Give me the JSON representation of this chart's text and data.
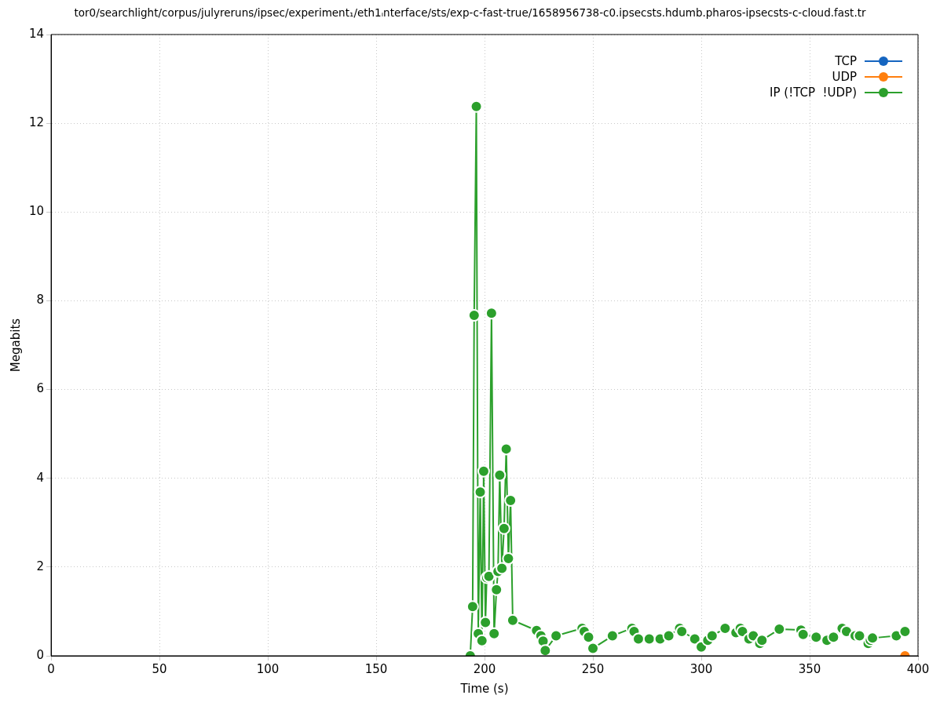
{
  "chart_data": {
    "type": "line",
    "title": "tor0/searchlight/corpus/julyreruns/ipsec/experiment₁/eth1ᵢnterface/sts/exp-c-fast-true/1658956738-c0.ipsecsts.hdumb.pharos-ipsecsts-c-cloud.fast.tr",
    "xlabel": "Time (s)",
    "ylabel": "Megabits",
    "xlim": [
      0,
      400
    ],
    "xticks": [
      0,
      50,
      100,
      150,
      200,
      250,
      300,
      350,
      400
    ],
    "ylim": [
      0,
      14
    ],
    "yticks": [
      0,
      2,
      4,
      6,
      8,
      10,
      12,
      14
    ],
    "grid": true,
    "legend": "top right",
    "marker": "circle",
    "line_style": "solid",
    "series": [
      {
        "name": "TCP",
        "color": "#1565c0"
      },
      {
        "name": "UDP",
        "color": "#ff7f0e",
        "x": [
          394
        ],
        "values": [
          0
        ]
      },
      {
        "name": "IP (!TCP  !UDP)",
        "color": "#2ca02c",
        "x": [
          193.4,
          194.5,
          195.2,
          196.2,
          197.1,
          198,
          198.8,
          199.6,
          200.4,
          201,
          202,
          203.2,
          204.4,
          205.5,
          206.2,
          207,
          208,
          209,
          210,
          211,
          212,
          213,
          224,
          226,
          227,
          228,
          233,
          245,
          246,
          248,
          250,
          259,
          268,
          269,
          271,
          276,
          281,
          285,
          290,
          291,
          297,
          300,
          303,
          305,
          311,
          316,
          318,
          319,
          322,
          324,
          327,
          328,
          336,
          346,
          347,
          353,
          358,
          361,
          365,
          367,
          371,
          373,
          377,
          378,
          379,
          390,
          394
        ],
        "values": [
          0,
          1.11,
          7.67,
          12.38,
          0.5,
          3.69,
          0.34,
          4.16,
          0.75,
          1.76,
          1.79,
          7.72,
          0.5,
          1.49,
          1.9,
          4.07,
          1.97,
          2.87,
          4.66,
          2.19,
          3.5,
          0.8,
          0.57,
          0.45,
          0.33,
          0.12,
          0.45,
          0.62,
          0.55,
          0.42,
          0.17,
          0.45,
          0.62,
          0.55,
          0.38,
          0.38,
          0.38,
          0.45,
          0.62,
          0.55,
          0.38,
          0.2,
          0.35,
          0.45,
          0.62,
          0.52,
          0.62,
          0.55,
          0.38,
          0.45,
          0.28,
          0.35,
          0.6,
          0.58,
          0.48,
          0.42,
          0.35,
          0.42,
          0.62,
          0.55,
          0.45,
          0.45,
          0.28,
          0.35,
          0.4,
          0.45,
          0.55
        ]
      }
    ]
  }
}
